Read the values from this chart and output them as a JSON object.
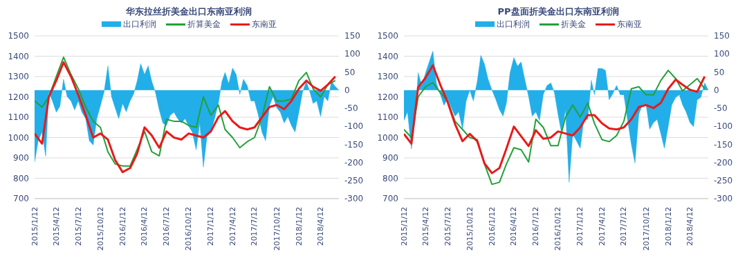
{
  "chart_data": [
    {
      "type": "line",
      "title": "华东拉丝折美金出口东南亚利润",
      "x": [
        "2015-01-12",
        "2015-02-12",
        "2015-03-12",
        "2015-04-12",
        "2015-05-12",
        "2015-06-12",
        "2015-07-12",
        "2015-08-12",
        "2015-09-12",
        "2015-10-12",
        "2015-11-12",
        "2015-12-12",
        "2016-01-12",
        "2016-02-12",
        "2016-03-12",
        "2016-04-12",
        "2016-05-12",
        "2016-06-12",
        "2016-07-12",
        "2016-08-12",
        "2016-09-12",
        "2016-10-12",
        "2016-11-12",
        "2016-12-12",
        "2017-01-12",
        "2017-02-12",
        "2017-03-12",
        "2017-04-12",
        "2017-05-12",
        "2017-06-12",
        "2017-07-12",
        "2017-08-12",
        "2017-09-12",
        "2017-10-12",
        "2017-11-12",
        "2017-12-12",
        "2018-01-12",
        "2018-02-12",
        "2018-03-12",
        "2018-04-12",
        "2018-05-12",
        "2018-06-12"
      ],
      "series": [
        {
          "name": "出口利润",
          "type": "area",
          "axis": "y2",
          "color": "#22aee8",
          "x": [
            "2015-01-12",
            "2015-01-27",
            "2015-02-12",
            "2015-02-27",
            "2015-03-12",
            "2015-03-27",
            "2015-04-12",
            "2015-04-27",
            "2015-05-12",
            "2015-05-27",
            "2015-06-12",
            "2015-06-27",
            "2015-07-12",
            "2015-07-27",
            "2015-08-12",
            "2015-08-27",
            "2015-09-12",
            "2015-09-27",
            "2015-10-12",
            "2015-10-27",
            "2015-11-12",
            "2015-11-27",
            "2015-12-12",
            "2015-12-27",
            "2016-01-12",
            "2016-01-27",
            "2016-02-12",
            "2016-02-27",
            "2016-03-12",
            "2016-03-27",
            "2016-04-12",
            "2016-04-27",
            "2016-05-12",
            "2016-05-27",
            "2016-06-12",
            "2016-06-27",
            "2016-07-12",
            "2016-07-27",
            "2016-08-12",
            "2016-08-27",
            "2016-09-12",
            "2016-09-27",
            "2016-10-12",
            "2016-10-27",
            "2016-11-12",
            "2016-11-27",
            "2016-12-12",
            "2016-12-27",
            "2017-01-12",
            "2017-01-27",
            "2017-02-12",
            "2017-02-27",
            "2017-03-12",
            "2017-03-27",
            "2017-04-12",
            "2017-04-27",
            "2017-05-12",
            "2017-05-27",
            "2017-06-12",
            "2017-06-27",
            "2017-07-12",
            "2017-07-27",
            "2017-08-12",
            "2017-08-27",
            "2017-09-12",
            "2017-09-27",
            "2017-10-12",
            "2017-10-27",
            "2017-11-12",
            "2017-11-27",
            "2017-12-12",
            "2017-12-27",
            "2018-01-12",
            "2018-01-27",
            "2018-02-12",
            "2018-02-27",
            "2018-03-12",
            "2018-03-27",
            "2018-04-12",
            "2018-04-27",
            "2018-05-12",
            "2018-05-27",
            "2018-06-12",
            "2018-06-27"
          ],
          "values": [
            -200,
            -140,
            -116,
            -183,
            -6,
            -30,
            -61,
            -45,
            30,
            -18,
            -30,
            -55,
            -30,
            -61,
            -79,
            -140,
            -152,
            -79,
            -43,
            -6,
            67,
            -18,
            -49,
            -79,
            -37,
            -60,
            -30,
            -10,
            24,
            73,
            43,
            67,
            24,
            -6,
            -55,
            -91,
            -98,
            -70,
            -61,
            -79,
            -91,
            -79,
            -100,
            -116,
            -165,
            -91,
            -213,
            -128,
            -116,
            -80,
            -37,
            24,
            49,
            18,
            61,
            43,
            -12,
            30,
            12,
            -30,
            -30,
            -67,
            -116,
            -140,
            -43,
            -18,
            -49,
            -61,
            -91,
            -73,
            -98,
            -116,
            -61,
            -6,
            24,
            -6,
            -37,
            -30,
            -73,
            -18,
            -30,
            24,
            10,
            0
          ]
        },
        {
          "name": "折算美金",
          "color": "#21a139",
          "values": [
            1180,
            1150,
            1200,
            1300,
            1395,
            1310,
            1240,
            1150,
            1080,
            1050,
            930,
            870,
            860,
            860,
            940,
            1030,
            930,
            910,
            1090,
            1080,
            1080,
            1060,
            1050,
            1200,
            1110,
            1160,
            1040,
            1000,
            950,
            980,
            1000,
            1100,
            1250,
            1180,
            1180,
            1190,
            1280,
            1320,
            1240,
            1200,
            1260,
            1280
          ]
        },
        {
          "name": "东南亚",
          "color": "#e81a1a",
          "values": [
            1020,
            970,
            1200,
            1280,
            1370,
            1300,
            1210,
            1110,
            1000,
            1020,
            990,
            890,
            830,
            850,
            920,
            1050,
            1010,
            950,
            1030,
            1000,
            990,
            1020,
            1010,
            1000,
            1030,
            1100,
            1130,
            1080,
            1050,
            1040,
            1050,
            1100,
            1150,
            1160,
            1140,
            1180,
            1240,
            1280,
            1250,
            1230,
            1260,
            1300
          ]
        }
      ],
      "xlim": [
        "2015-01-12",
        "2018-06-27"
      ],
      "xticks": [
        {
          "value": "2015-01-12",
          "label": "2015/1/12"
        },
        {
          "value": "2015-04-12",
          "label": "2015/4/12"
        },
        {
          "value": "2015-07-12",
          "label": "2015/7/12"
        },
        {
          "value": "2015-10-12",
          "label": "2015/10/12"
        },
        {
          "value": "2016-01-12",
          "label": "2016/1/12"
        },
        {
          "value": "2016-04-12",
          "label": "2016/4/12"
        },
        {
          "value": "2016-07-12",
          "label": "2016/7/12"
        },
        {
          "value": "2016-10-12",
          "label": "2016/10/12"
        },
        {
          "value": "2017-01-12",
          "label": "2017/1/12"
        },
        {
          "value": "2017-04-12",
          "label": "2017/4/12"
        },
        {
          "value": "2017-07-12",
          "label": "2017/7/12"
        },
        {
          "value": "2017-10-12",
          "label": "2017/10/12"
        },
        {
          "value": "2018-01-12",
          "label": "2018/1/12"
        },
        {
          "value": "2018-04-12",
          "label": "2018/4/12"
        }
      ],
      "ylim": [
        700,
        1500
      ],
      "yticks": [
        700,
        800,
        900,
        1000,
        1100,
        1200,
        1300,
        1400,
        1500
      ],
      "y2lim": [
        -300,
        150
      ],
      "y2ticks": [
        -300,
        -250,
        -200,
        -150,
        -100,
        -50,
        0,
        50,
        100,
        150
      ],
      "grid": "y",
      "legend": "top"
    },
    {
      "type": "line",
      "title": "PP盘面折美金出口东南亚利润",
      "x": [
        "2015-01-12",
        "2015-02-12",
        "2015-03-12",
        "2015-04-12",
        "2015-05-12",
        "2015-06-12",
        "2015-07-12",
        "2015-08-12",
        "2015-09-12",
        "2015-10-12",
        "2015-11-12",
        "2015-12-12",
        "2016-01-12",
        "2016-02-12",
        "2016-03-12",
        "2016-04-12",
        "2016-05-12",
        "2016-06-12",
        "2016-07-12",
        "2016-08-12",
        "2016-09-12",
        "2016-10-12",
        "2016-11-12",
        "2016-12-12",
        "2017-01-12",
        "2017-02-12",
        "2017-03-12",
        "2017-04-12",
        "2017-05-12",
        "2017-06-12",
        "2017-07-12",
        "2017-08-12",
        "2017-09-12",
        "2017-10-12",
        "2017-11-12",
        "2017-12-12",
        "2018-01-12",
        "2018-02-12",
        "2018-03-12",
        "2018-04-12",
        "2018-05-12",
        "2018-06-12"
      ],
      "series": [
        {
          "name": "出口利润",
          "type": "area",
          "axis": "y2",
          "color": "#22aee8",
          "x": [
            "2015-01-12",
            "2015-01-27",
            "2015-02-12",
            "2015-02-27",
            "2015-03-12",
            "2015-03-27",
            "2015-04-12",
            "2015-04-27",
            "2015-05-12",
            "2015-05-27",
            "2015-06-12",
            "2015-06-27",
            "2015-07-12",
            "2015-07-27",
            "2015-08-12",
            "2015-08-27",
            "2015-09-12",
            "2015-09-27",
            "2015-10-12",
            "2015-10-27",
            "2015-11-12",
            "2015-11-27",
            "2015-12-12",
            "2015-12-27",
            "2016-01-12",
            "2016-01-27",
            "2016-02-12",
            "2016-02-27",
            "2016-03-12",
            "2016-03-27",
            "2016-04-12",
            "2016-04-27",
            "2016-05-12",
            "2016-05-27",
            "2016-06-12",
            "2016-06-27",
            "2016-07-12",
            "2016-07-27",
            "2016-08-12",
            "2016-08-27",
            "2016-09-12",
            "2016-09-27",
            "2016-10-12",
            "2016-10-27",
            "2016-11-12",
            "2016-11-27",
            "2016-12-12",
            "2016-12-27",
            "2017-01-12",
            "2017-01-27",
            "2017-02-12",
            "2017-02-27",
            "2017-03-12",
            "2017-03-27",
            "2017-04-12",
            "2017-04-27",
            "2017-05-12",
            "2017-05-27",
            "2017-06-12",
            "2017-06-27",
            "2017-07-12",
            "2017-07-27",
            "2017-08-12",
            "2017-08-27",
            "2017-09-12",
            "2017-09-27",
            "2017-10-12",
            "2017-10-27",
            "2017-11-12",
            "2017-11-27",
            "2017-12-12",
            "2017-12-27",
            "2018-01-12",
            "2018-01-27",
            "2018-02-12",
            "2018-02-27",
            "2018-03-12",
            "2018-03-27",
            "2018-04-12",
            "2018-04-27",
            "2018-05-12",
            "2018-05-27",
            "2018-06-12",
            "2018-06-27"
          ],
          "values": [
            -84,
            -60,
            -163,
            -84,
            48,
            12,
            48,
            78,
            108,
            18,
            -12,
            -42,
            -24,
            -48,
            -72,
            -60,
            -108,
            -30,
            0,
            -30,
            24,
            96,
            72,
            30,
            0,
            -24,
            -54,
            -72,
            -36,
            48,
            90,
            66,
            78,
            30,
            -18,
            -72,
            -60,
            -84,
            -12,
            12,
            20,
            -7,
            -67,
            -121,
            -54,
            -255,
            -121,
            -140,
            -161,
            -81,
            -81,
            27,
            -13,
            60,
            60,
            54,
            -27,
            -10,
            13,
            -13,
            -13,
            -81,
            -150,
            -202,
            -67,
            -40,
            -40,
            -108,
            -90,
            -81,
            -120,
            -161,
            -100,
            -40,
            -20,
            -13,
            -40,
            -60,
            -90,
            -101,
            -27,
            -20,
            20,
            0
          ]
        },
        {
          "name": "折美金",
          "color": "#21a139",
          "values": [
            1040,
            1000,
            1200,
            1250,
            1270,
            1220,
            1180,
            1080,
            1040,
            1000,
            990,
            870,
            770,
            780,
            870,
            950,
            940,
            880,
            1090,
            1050,
            960,
            960,
            1100,
            1160,
            1100,
            1170,
            1070,
            990,
            980,
            1010,
            1080,
            1240,
            1250,
            1210,
            1210,
            1280,
            1330,
            1290,
            1230,
            1260,
            1290,
            1240
          ]
        },
        {
          "name": "东南亚",
          "color": "#e81a1a",
          "values": [
            1018,
            970,
            1247,
            1295,
            1355,
            1259,
            1175,
            1066,
            982,
            1018,
            982,
            873,
            825,
            850,
            946,
            1054,
            1006,
            958,
            1036,
            994,
            1000,
            1030,
            1020,
            1010,
            1050,
            1110,
            1110,
            1070,
            1045,
            1040,
            1050,
            1090,
            1150,
            1160,
            1145,
            1170,
            1240,
            1285,
            1260,
            1235,
            1225,
            1300
          ]
        }
      ],
      "xlim": [
        "2015-01-12",
        "2018-06-27"
      ],
      "xticks": [
        {
          "value": "2015-01-12",
          "label": "2015/1/12"
        },
        {
          "value": "2015-04-12",
          "label": "2015/4/12"
        },
        {
          "value": "2015-07-12",
          "label": "2015/7/12"
        },
        {
          "value": "2015-10-12",
          "label": "2015/10/12"
        },
        {
          "value": "2016-01-12",
          "label": "2016/1/12"
        },
        {
          "value": "2016-04-12",
          "label": "2016/4/12"
        },
        {
          "value": "2016-07-12",
          "label": "2016/7/12"
        },
        {
          "value": "2016-10-12",
          "label": "2016/10/12"
        },
        {
          "value": "2017-01-12",
          "label": "2017/1/12"
        },
        {
          "value": "2017-04-12",
          "label": "2017/4/12"
        },
        {
          "value": "2017-07-12",
          "label": "2017/7/12"
        },
        {
          "value": "2017-10-12",
          "label": "2017/10/12"
        },
        {
          "value": "2018-01-12",
          "label": "2018/1/12"
        },
        {
          "value": "2018-04-12",
          "label": "2018/4/12"
        }
      ],
      "ylim": [
        700,
        1500
      ],
      "yticks": [
        700,
        800,
        900,
        1000,
        1100,
        1200,
        1300,
        1400,
        1500
      ],
      "y2lim": [
        -300,
        150
      ],
      "y2ticks": [
        -300,
        -250,
        -200,
        -150,
        -100,
        -50,
        0,
        50,
        100,
        150
      ],
      "grid": "y",
      "legend": "top"
    }
  ]
}
